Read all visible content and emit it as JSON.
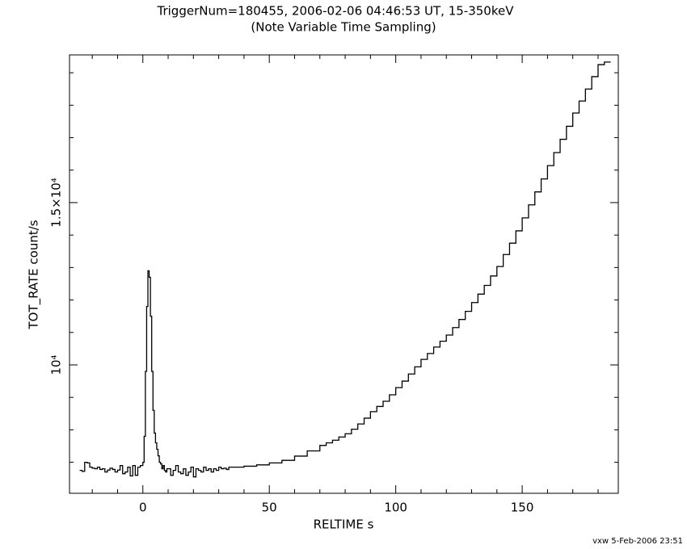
{
  "chart_data": {
    "type": "step",
    "title": "TriggerNum=180455, 2006-02-06 04:46:53 UT, 15-350keV",
    "subtitle": "(Note Variable Time Sampling)",
    "xlabel": "RELTIME  s",
    "ylabel": "TOT_RATE  count/s",
    "footer": "vxw  5-Feb-2006 23:51",
    "color": "#000000",
    "xlim": [
      -29,
      188
    ],
    "ylim": [
      6045,
      19550
    ],
    "xticks": [
      0,
      50,
      100,
      150
    ],
    "xminor": [
      -20,
      -10,
      10,
      20,
      30,
      40,
      60,
      70,
      80,
      90,
      110,
      120,
      130,
      140,
      160,
      170,
      180
    ],
    "yticks": [
      {
        "value": 10000,
        "label": "10⁴"
      },
      {
        "value": 15000,
        "label": "1.5×10⁴"
      }
    ],
    "yminor": [
      7000,
      8000,
      9000,
      11000,
      12000,
      13000,
      14000,
      16000,
      17000,
      18000,
      19000
    ],
    "x": [
      -25,
      -24,
      -23,
      -22,
      -21,
      -20,
      -19,
      -18,
      -17,
      -16,
      -15,
      -14,
      -13,
      -12,
      -11,
      -10,
      -9,
      -8,
      -7,
      -6,
      -5,
      -4,
      -3,
      -2,
      -1,
      0,
      0.5,
      1,
      1.5,
      2,
      2.5,
      3,
      3.5,
      4,
      4.5,
      5,
      5.5,
      6,
      6.5,
      7,
      7.5,
      8,
      8.5,
      9,
      9.5,
      10,
      11,
      12,
      13,
      14,
      15,
      16,
      17,
      18,
      19,
      20,
      21,
      22,
      23,
      24,
      25,
      26,
      27,
      28,
      29,
      30,
      31,
      32,
      33,
      34,
      35,
      40,
      45,
      50,
      55,
      60,
      65,
      70,
      72.5,
      75,
      77.5,
      80,
      82.5,
      85,
      87.5,
      90,
      92.5,
      95,
      97.5,
      100,
      102.5,
      105,
      107.5,
      110,
      112.5,
      115,
      117.5,
      120,
      122.5,
      125,
      127.5,
      130,
      132.5,
      135,
      137.5,
      140,
      142.5,
      145,
      147.5,
      150,
      152.5,
      155,
      157.5,
      160,
      162.5,
      165,
      167.5,
      170,
      172.5,
      175,
      177.5,
      180,
      182.5,
      185
    ],
    "values": [
      6750,
      6720,
      7000,
      6980,
      6850,
      6820,
      6800,
      6850,
      6780,
      6800,
      6700,
      6760,
      6820,
      6780,
      6700,
      6760,
      6900,
      6650,
      6700,
      6850,
      6580,
      6900,
      6600,
      6850,
      6900,
      7000,
      7800,
      9800,
      11800,
      12900,
      12700,
      11500,
      9800,
      8600,
      7900,
      7600,
      7400,
      7200,
      7000,
      6950,
      6800,
      6900,
      6750,
      6700,
      6800,
      6800,
      6600,
      6750,
      6900,
      6700,
      6650,
      6800,
      6600,
      6700,
      6850,
      6550,
      6800,
      6750,
      6700,
      6850,
      6750,
      6800,
      6700,
      6800,
      6750,
      6850,
      6800,
      6820,
      6780,
      6850,
      6850,
      6880,
      6920,
      6980,
      7060,
      7190,
      7350,
      7520,
      7600,
      7680,
      7780,
      7880,
      8020,
      8180,
      8360,
      8560,
      8720,
      8880,
      9080,
      9300,
      9500,
      9720,
      9940,
      10170,
      10350,
      10550,
      10730,
      10920,
      11150,
      11400,
      11650,
      11920,
      12180,
      12450,
      12740,
      13030,
      13400,
      13750,
      14130,
      14530,
      14930,
      15330,
      15730,
      16140,
      16540,
      16950,
      17350,
      17760,
      18130,
      18500,
      18880,
      19250,
      19330,
      19330
    ]
  }
}
